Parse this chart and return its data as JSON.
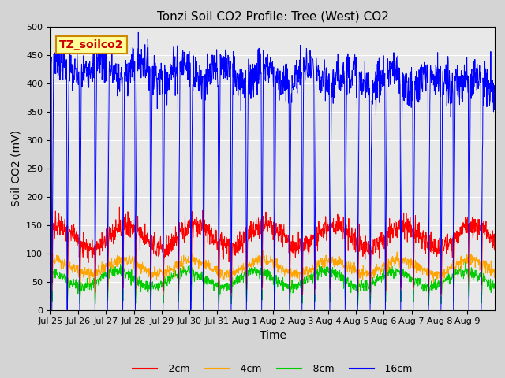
{
  "title": "Tonzi Soil CO2 Profile: Tree (West) CO2",
  "ylabel": "Soil CO2 (mV)",
  "xlabel": "Time",
  "ylim": [
    0,
    500
  ],
  "yticks": [
    0,
    50,
    100,
    150,
    200,
    250,
    300,
    350,
    400,
    450,
    500
  ],
  "annotation_text": "TZ_soilco2",
  "annotation_bg": "#ffff99",
  "annotation_border": "#cc8800",
  "background_color": "#d4d4d4",
  "plot_bg": "#e8e8e8",
  "title_fontsize": 11,
  "axis_fontsize": 10,
  "tick_fontsize": 8,
  "legend_fontsize": 9,
  "tick_labels": [
    "Jul 25",
    "Jul 26",
    "Jul 27",
    "Jul 28",
    "Jul 29",
    "Jul 30",
    "Jul 31",
    "Aug 1",
    "Aug 2",
    "Aug 3",
    "Aug 4",
    "Aug 5",
    "Aug 6",
    "Aug 7",
    "Aug 8",
    "Aug 9"
  ],
  "n_points": 1600,
  "seed": 7
}
